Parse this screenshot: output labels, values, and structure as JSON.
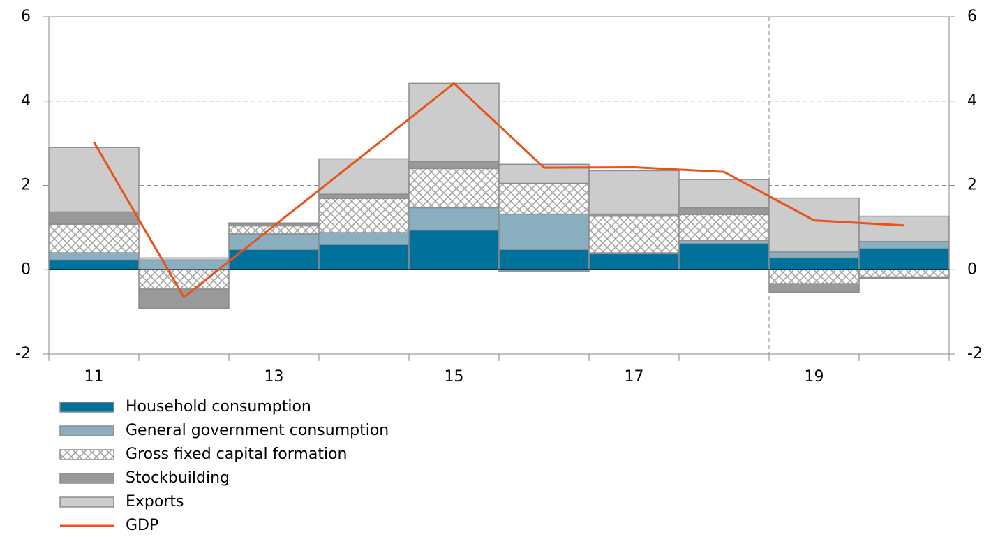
{
  "chart_data": {
    "type": "bar",
    "categories": [
      "11",
      null,
      "13",
      null,
      "15",
      null,
      "17",
      null,
      "19",
      null
    ],
    "series": [
      {
        "name": "Household consumption",
        "color": "#00719a",
        "values": [
          0.23,
          0,
          0.48,
          0.6,
          0.94,
          0.48,
          0.38,
          0.62,
          0.28,
          0.5
        ]
      },
      {
        "name": "General government consumption",
        "color": "#8aafc0",
        "values": [
          0.17,
          0.23,
          0.37,
          0.28,
          0.53,
          0.84,
          0.02,
          0.08,
          0.14,
          0.17
        ]
      },
      {
        "name": "Gross fixed capital formation",
        "color": "#a0a0a0",
        "pattern": "hatch",
        "values": [
          0.68,
          -0.46,
          0.19,
          0.81,
          0.93,
          0.73,
          0.87,
          0.61,
          -0.33,
          -0.17
        ]
      },
      {
        "name": "Stockbuilding",
        "color": "#999999",
        "values": [
          0.29,
          -0.46,
          0.05,
          0.1,
          0.17,
          -0.05,
          0.05,
          0.16,
          -0.2,
          -0.03
        ]
      },
      {
        "name": "Exports",
        "color": "#cccccc",
        "values": [
          1.53,
          0.05,
          0.02,
          0.84,
          1.85,
          0.45,
          1.03,
          0.67,
          1.28,
          0.6
        ]
      },
      {
        "name": "GDP",
        "color": "#e8521b",
        "type": "line",
        "values": [
          3.03,
          -0.65,
          1.04,
          2.73,
          4.42,
          2.42,
          2.43,
          2.32,
          1.17,
          1.05
        ]
      }
    ],
    "ylim": [
      -2,
      6
    ],
    "yticks": [
      -2,
      0,
      2,
      4,
      6
    ],
    "y2lim": [
      -2,
      6
    ],
    "y2ticks": [
      -2,
      0,
      2,
      4,
      6
    ],
    "grid": true,
    "divider_before_category": 8
  }
}
